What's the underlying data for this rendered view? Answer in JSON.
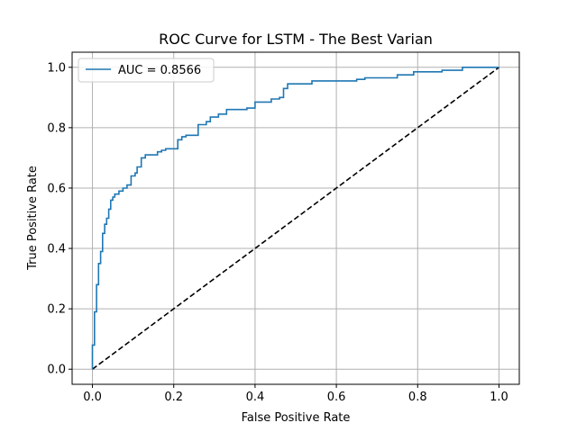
{
  "chart_data": {
    "type": "line",
    "title": "ROC Curve for LSTM - The Best Varian",
    "xlabel": "False Positive Rate",
    "ylabel": "True Positive Rate",
    "xlim": [
      -0.05,
      1.05
    ],
    "ylim": [
      -0.05,
      1.05
    ],
    "xticks": [
      0.0,
      0.2,
      0.4,
      0.6,
      0.8,
      1.0
    ],
    "yticks": [
      0.0,
      0.2,
      0.4,
      0.6,
      0.8,
      1.0
    ],
    "xtick_labels": [
      "0.0",
      "0.2",
      "0.4",
      "0.6",
      "0.8",
      "1.0"
    ],
    "ytick_labels": [
      "0.0",
      "0.2",
      "0.4",
      "0.6",
      "0.8",
      "1.0"
    ],
    "grid": true,
    "legend_position": "top-left",
    "series": [
      {
        "name": "AUC = 0.8566",
        "color": "#1f77b4",
        "style": "solid-step",
        "x": [
          0.0,
          0.0,
          0.005,
          0.005,
          0.01,
          0.01,
          0.015,
          0.015,
          0.02,
          0.02,
          0.025,
          0.025,
          0.03,
          0.03,
          0.035,
          0.035,
          0.04,
          0.04,
          0.045,
          0.045,
          0.05,
          0.05,
          0.055,
          0.055,
          0.065,
          0.065,
          0.075,
          0.075,
          0.085,
          0.085,
          0.095,
          0.095,
          0.105,
          0.105,
          0.11,
          0.11,
          0.12,
          0.12,
          0.13,
          0.13,
          0.16,
          0.16,
          0.17,
          0.17,
          0.18,
          0.18,
          0.21,
          0.21,
          0.22,
          0.22,
          0.23,
          0.23,
          0.26,
          0.26,
          0.28,
          0.28,
          0.29,
          0.29,
          0.31,
          0.31,
          0.33,
          0.33,
          0.38,
          0.38,
          0.4,
          0.4,
          0.44,
          0.44,
          0.46,
          0.46,
          0.47,
          0.47,
          0.48,
          0.48,
          0.54,
          0.54,
          0.65,
          0.65,
          0.67,
          0.67,
          0.75,
          0.75,
          0.79,
          0.79,
          0.86,
          0.86,
          0.91,
          0.91,
          1.0
        ],
        "y": [
          0.0,
          0.08,
          0.08,
          0.19,
          0.19,
          0.28,
          0.28,
          0.35,
          0.35,
          0.39,
          0.39,
          0.45,
          0.45,
          0.48,
          0.48,
          0.5,
          0.5,
          0.53,
          0.53,
          0.56,
          0.56,
          0.57,
          0.57,
          0.58,
          0.58,
          0.59,
          0.59,
          0.6,
          0.6,
          0.61,
          0.61,
          0.64,
          0.64,
          0.65,
          0.65,
          0.67,
          0.67,
          0.7,
          0.7,
          0.71,
          0.71,
          0.72,
          0.72,
          0.725,
          0.725,
          0.73,
          0.73,
          0.76,
          0.76,
          0.77,
          0.77,
          0.775,
          0.775,
          0.81,
          0.81,
          0.82,
          0.82,
          0.835,
          0.835,
          0.845,
          0.845,
          0.86,
          0.86,
          0.865,
          0.865,
          0.885,
          0.885,
          0.895,
          0.895,
          0.9,
          0.9,
          0.93,
          0.93,
          0.945,
          0.945,
          0.955,
          0.955,
          0.96,
          0.96,
          0.965,
          0.965,
          0.975,
          0.975,
          0.985,
          0.985,
          0.99,
          0.99,
          1.0,
          1.0
        ]
      },
      {
        "name": "",
        "color": "#000000",
        "style": "dashed",
        "x": [
          0.0,
          1.0
        ],
        "y": [
          0.0,
          1.0
        ]
      }
    ]
  }
}
